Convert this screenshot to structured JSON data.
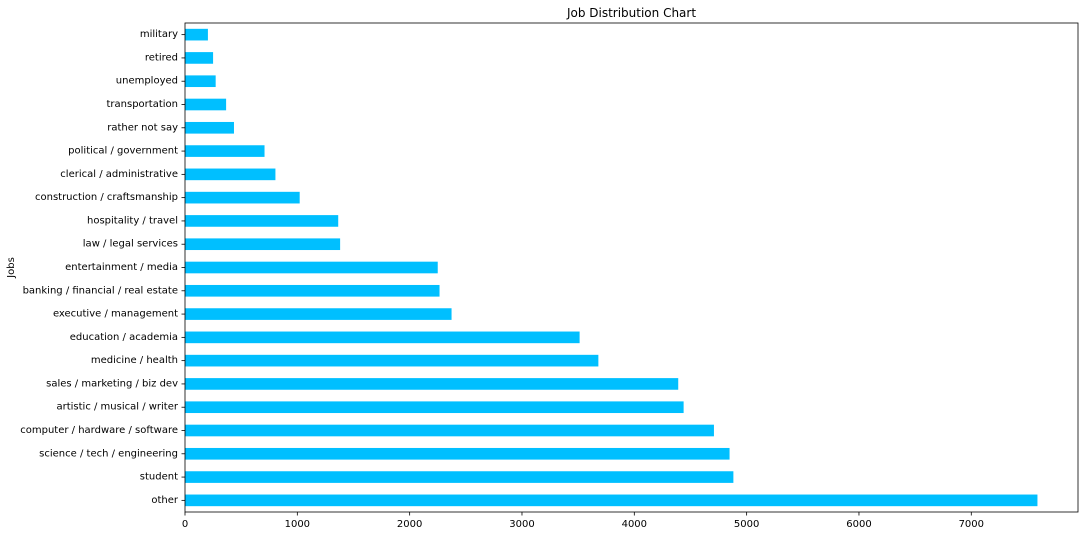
{
  "chart_data": {
    "type": "bar",
    "orientation": "horizontal",
    "title": "Job Distribution Chart",
    "xlabel": "",
    "ylabel": "Jobs",
    "bar_color": "#00BFFF",
    "xlim": [
      0,
      7950
    ],
    "xticks": [
      0,
      1000,
      2000,
      3000,
      4000,
      5000,
      6000,
      7000
    ],
    "grid": false,
    "legend": "none",
    "categories": [
      "other",
      "student",
      "science / tech / engineering",
      "computer / hardware / software",
      "artistic / musical / writer",
      "sales / marketing / biz dev",
      "medicine / health",
      "education / academia",
      "executive / management",
      "banking / financial / real estate",
      "entertainment / media",
      "law / legal services",
      "hospitality / travel",
      "construction / craftsmanship",
      "clerical / administrative",
      "political / government",
      "rather not say",
      "transportation",
      "unemployed",
      "retired",
      "military"
    ],
    "values": [
      7589,
      4882,
      4848,
      4709,
      4439,
      4391,
      3680,
      3513,
      2373,
      2266,
      2250,
      1381,
      1364,
      1021,
      805,
      708,
      436,
      366,
      273,
      250,
      204
    ]
  }
}
